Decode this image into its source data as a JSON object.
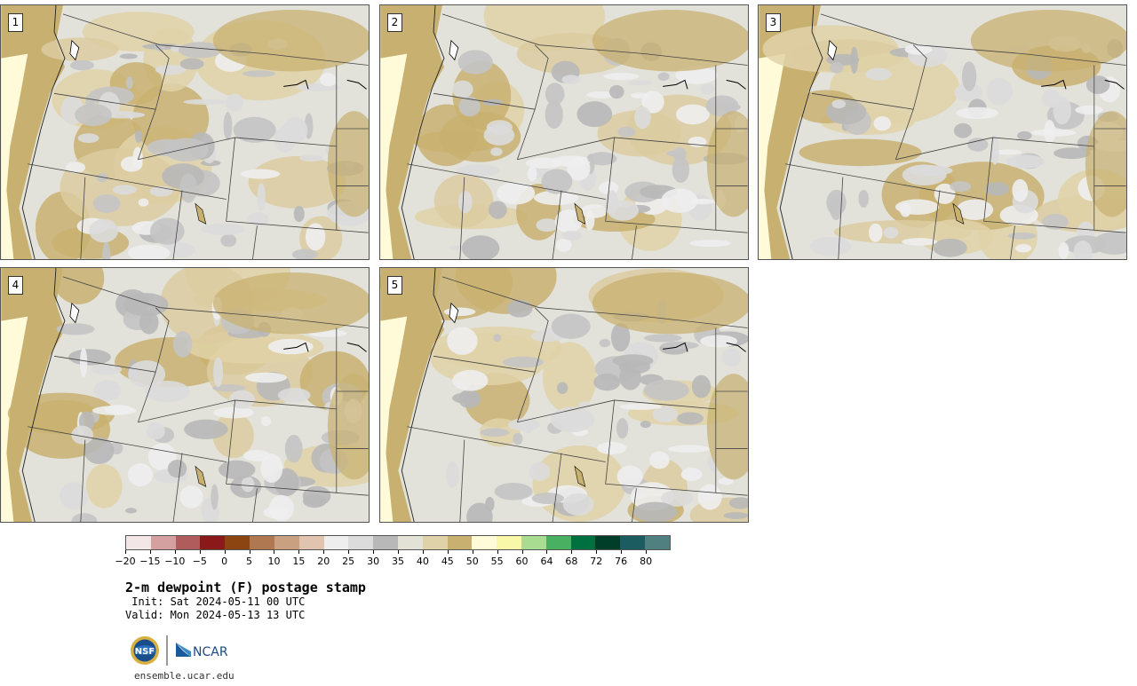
{
  "panels": [
    {
      "label": "1"
    },
    {
      "label": "2"
    },
    {
      "label": "3"
    },
    {
      "label": "4"
    },
    {
      "label": "5"
    }
  ],
  "colorbar": {
    "colors": [
      "#f2e6e6",
      "#d4a0a0",
      "#b05c5c",
      "#8a1a1a",
      "#8c4510",
      "#b07850",
      "#c9a080",
      "#e0c4b0",
      "#eeeeee",
      "#dcdcdc",
      "#b8b8b8",
      "#e2e2d6",
      "#e0d2a8",
      "#c8b070",
      "#fffbd8",
      "#f8f8a8",
      "#a8dc90",
      "#48b060",
      "#007040",
      "#003e2a",
      "#1a5c60",
      "#508080"
    ],
    "tick_labels": [
      "−20",
      "−15",
      "−10",
      "−5",
      "0",
      "5",
      "10",
      "15",
      "20",
      "25",
      "30",
      "35",
      "40",
      "45",
      "50",
      "55",
      "60",
      "64",
      "68",
      "72",
      "76",
      "80"
    ]
  },
  "title": "2-m dewpoint (F) postage stamp",
  "init": " Init: Sat 2024-05-11 00 UTC",
  "valid": "Valid: Mon 2024-05-13 13 UTC",
  "logos": {
    "left": "NSF",
    "right": "NCAR"
  },
  "url": "ensemble.ucar.edu"
}
